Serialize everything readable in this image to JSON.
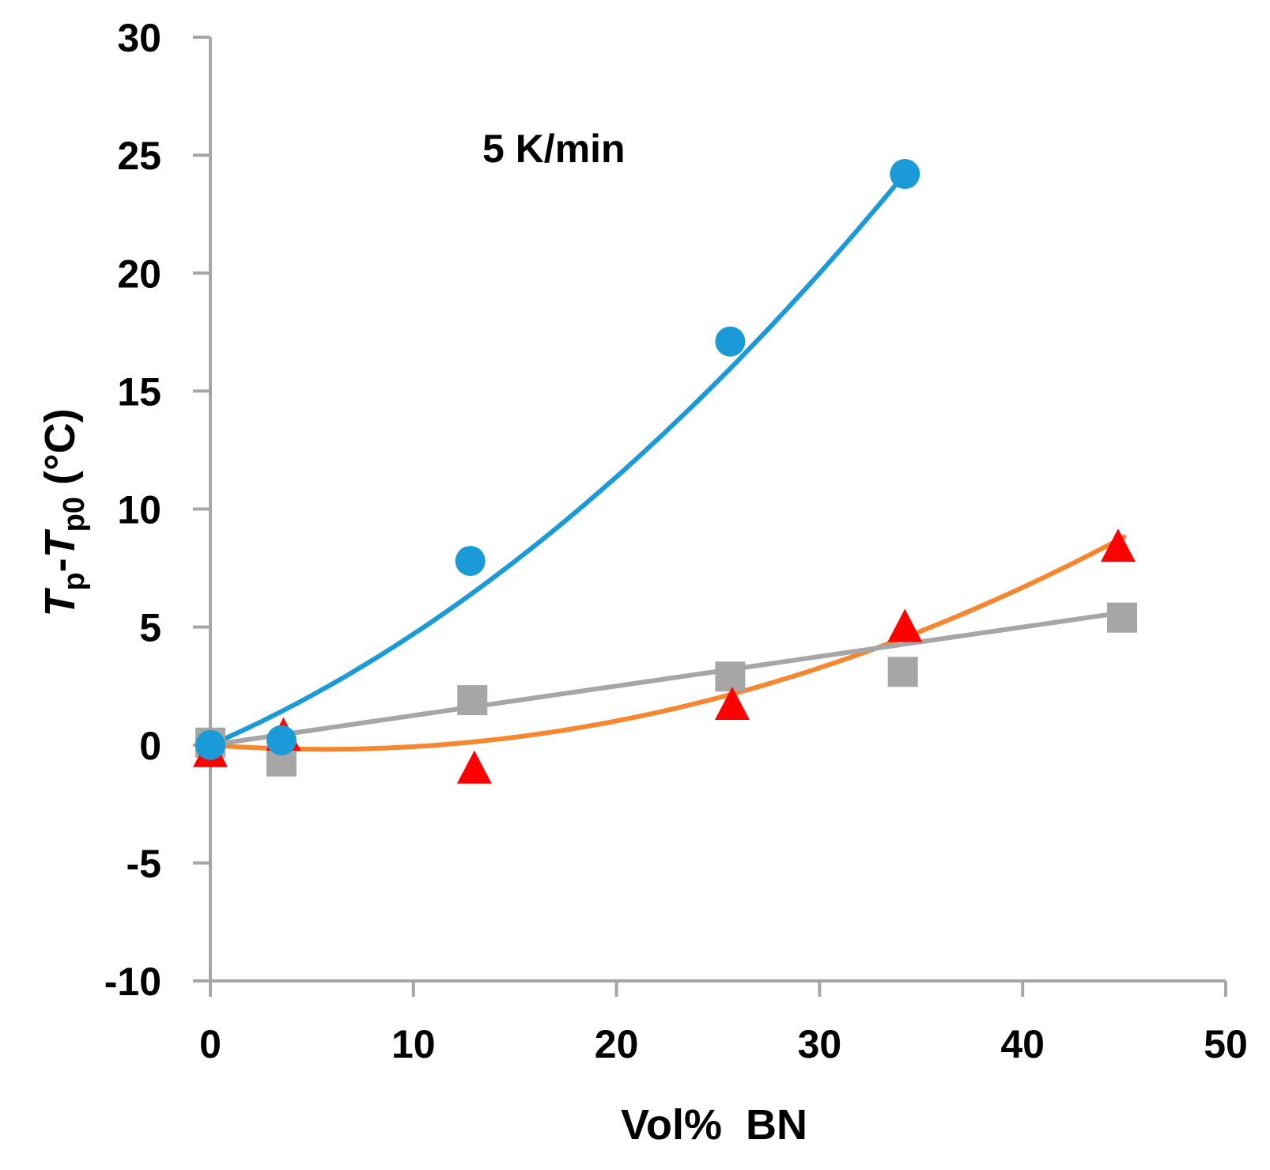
{
  "chart_data": {
    "type": "scatter",
    "title": "",
    "annotation": "5 K/min",
    "xlabel": "Vol%  BN",
    "ylabel": {
      "t1": "T",
      "s1": "p",
      "dash": "-",
      "t2": "T",
      "s2": "p0",
      "unit": " (°C)"
    },
    "xlim": [
      0,
      50
    ],
    "ylim": [
      -10,
      30
    ],
    "xticks": [
      0,
      10,
      20,
      30,
      40,
      50
    ],
    "yticks": [
      -10,
      -5,
      0,
      5,
      10,
      15,
      20,
      25,
      30
    ],
    "grid": false,
    "legend": "none",
    "series": [
      {
        "name": "circles",
        "marker": "circle",
        "color": "#1a9ad6",
        "x": [
          0,
          3.5,
          12.8,
          25.6,
          34.2
        ],
        "y": [
          0,
          0.2,
          7.8,
          17.1,
          24.2
        ],
        "fit": {
          "type": "quadratic",
          "coeffs": [
            0.00982,
            0.372,
            0
          ],
          "x_range": [
            0,
            34.2
          ]
        }
      },
      {
        "name": "triangles",
        "marker": "triangle",
        "color": "#ff0000",
        "x": [
          0,
          3.6,
          13.0,
          25.7,
          34.2,
          44.7
        ],
        "y": [
          -0.3,
          0.4,
          -1.0,
          1.7,
          5.0,
          8.4
        ],
        "fit": {
          "type": "quadratic",
          "color": "#f7862f",
          "coeffs": [
            0.0058,
            -0.065,
            0
          ],
          "x_range": [
            0,
            45
          ]
        }
      },
      {
        "name": "squares",
        "marker": "square",
        "color": "#a6a6a6",
        "x": [
          0,
          3.5,
          12.9,
          25.6,
          34.1,
          44.9
        ],
        "y": [
          0.1,
          -0.7,
          1.9,
          2.9,
          3.1,
          5.4
        ],
        "fit": {
          "type": "linear",
          "coeffs": [
            0.125,
            0
          ],
          "x_range": [
            0,
            45
          ]
        }
      }
    ]
  }
}
